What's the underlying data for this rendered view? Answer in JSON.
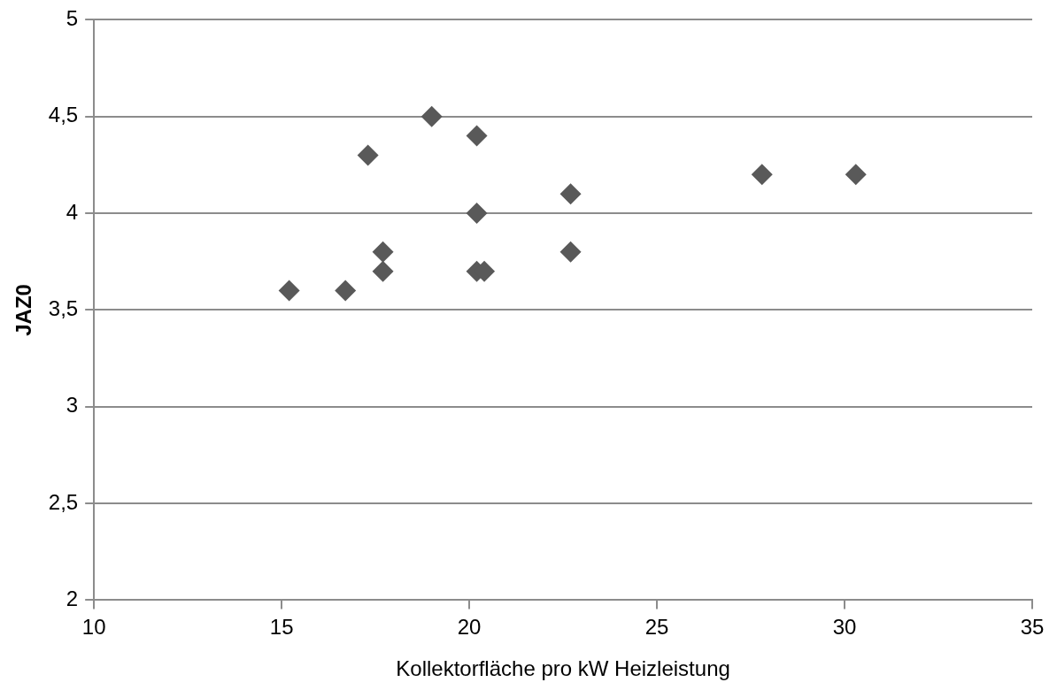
{
  "chart_data": {
    "type": "scatter",
    "xlabel": "Kollektorfläche pro kW Heizleistung",
    "ylabel": "JAZ0",
    "series": [
      {
        "color": "#595959",
        "x": [
          15.2,
          16.7,
          17.3,
          17.7,
          17.7,
          19.0,
          20.2,
          20.2,
          20.2,
          20.4,
          22.7,
          22.7,
          27.8,
          30.3
        ],
        "values": [
          3.6,
          3.6,
          4.3,
          3.8,
          3.7,
          4.5,
          4.4,
          4.0,
          3.7,
          3.7,
          4.1,
          3.8,
          4.2,
          4.2
        ]
      }
    ],
    "xlim": [
      10,
      35
    ],
    "xticks": [
      10,
      15,
      20,
      25,
      30,
      35
    ],
    "ylim": [
      2,
      5
    ],
    "yticks": [
      2,
      {
        "value": 2.5,
        "label": "2,5"
      },
      3,
      {
        "value": 3.5,
        "label": "3,5"
      },
      4,
      {
        "value": 4.5,
        "label": "4,5"
      },
      5
    ],
    "grid": "y",
    "marker": "diamond",
    "legend": false
  }
}
